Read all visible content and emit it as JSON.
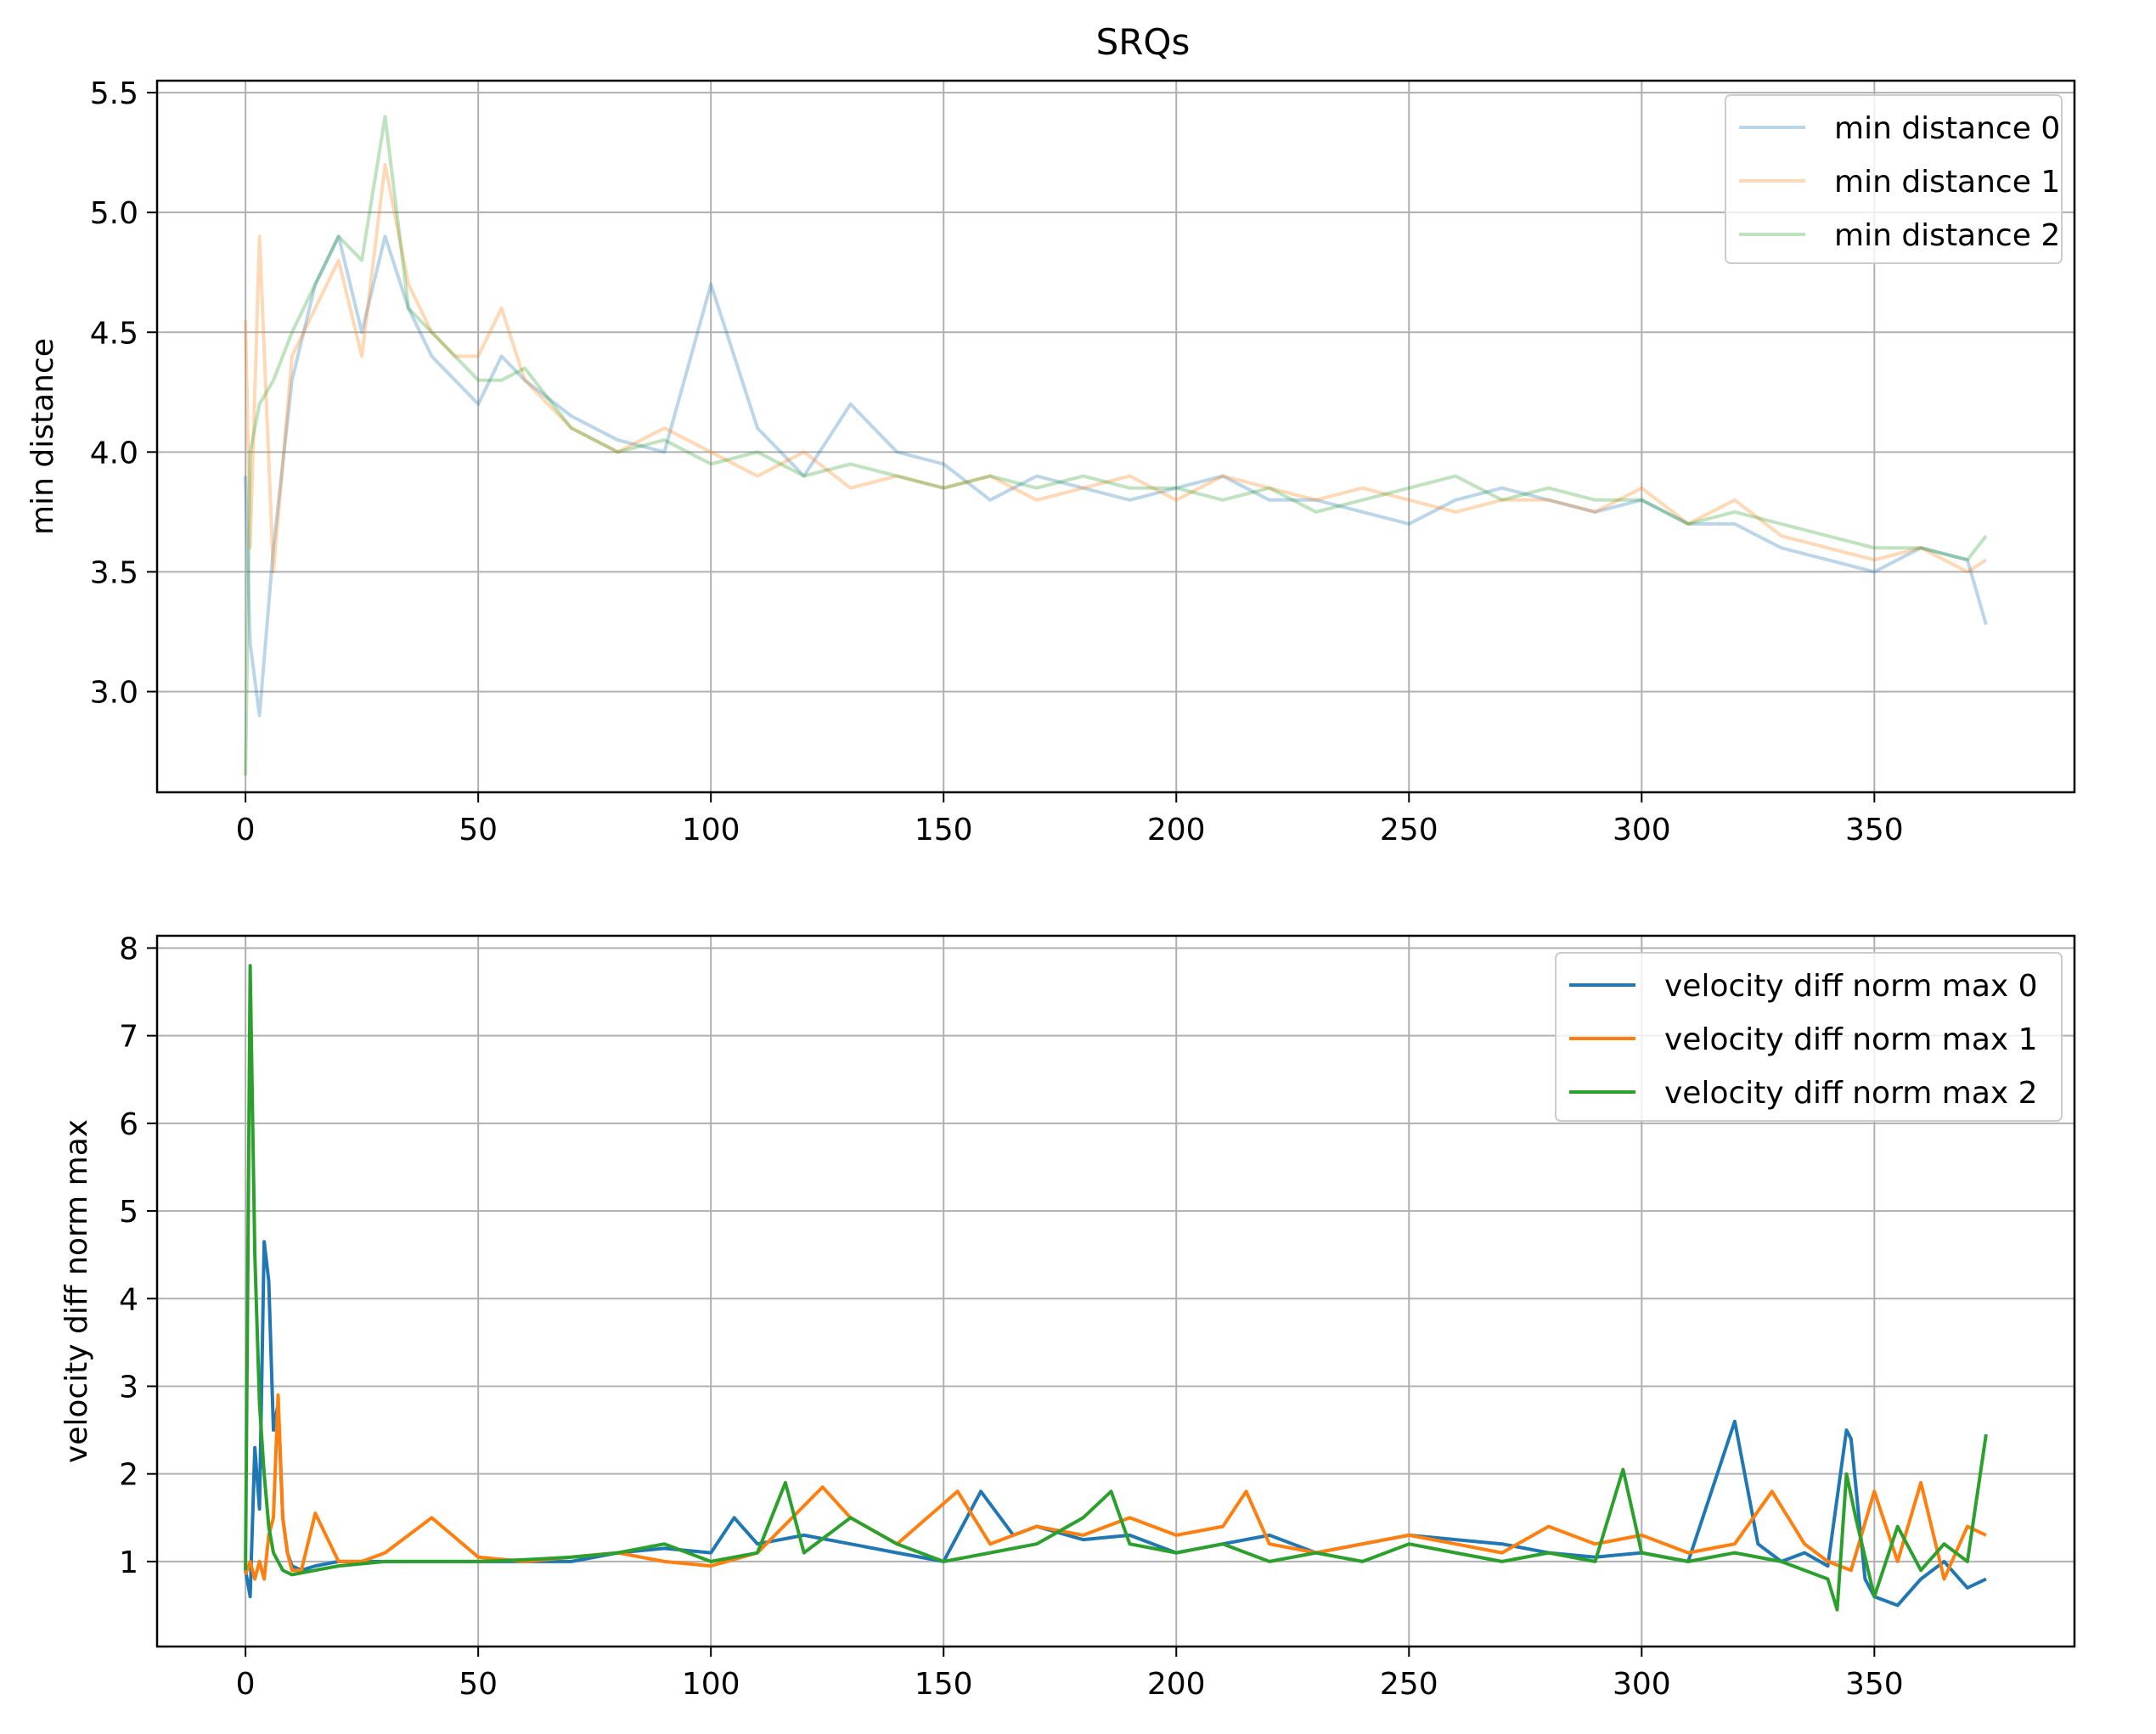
{
  "figure": {
    "title": "SRQs"
  },
  "chart_data": [
    {
      "type": "line",
      "title": "SRQs",
      "xlabel": "",
      "ylabel": "min distance",
      "xlim": [
        -19,
        393
      ],
      "ylim": [
        2.58,
        5.55
      ],
      "xticks": [
        0,
        50,
        100,
        150,
        200,
        250,
        300,
        350
      ],
      "yticks": [
        3.0,
        3.5,
        4.0,
        4.5,
        5.0,
        5.5
      ],
      "ytick_labels": [
        "3.0",
        "3.5",
        "4.0",
        "4.5",
        "5.0",
        "5.5"
      ],
      "grid": true,
      "legend": "top-right",
      "alpha": 0.3,
      "series": [
        {
          "name": "min distance 0",
          "color": "#1f77b4",
          "x": [
            0,
            1,
            3,
            6,
            10,
            15,
            20,
            25,
            30,
            35,
            40,
            45,
            50,
            55,
            60,
            70,
            80,
            90,
            100,
            110,
            120,
            130,
            140,
            150,
            160,
            170,
            180,
            190,
            200,
            210,
            220,
            230,
            240,
            250,
            260,
            270,
            280,
            290,
            300,
            310,
            320,
            330,
            340,
            350,
            360,
            370,
            374
          ],
          "y": [
            3.9,
            3.2,
            2.9,
            3.6,
            4.3,
            4.7,
            4.9,
            4.5,
            4.9,
            4.6,
            4.4,
            4.3,
            4.2,
            4.4,
            4.3,
            4.15,
            4.05,
            4.0,
            4.7,
            4.1,
            3.9,
            4.2,
            4.0,
            3.95,
            3.8,
            3.9,
            3.85,
            3.8,
            3.85,
            3.9,
            3.8,
            3.8,
            3.75,
            3.7,
            3.8,
            3.85,
            3.8,
            3.75,
            3.8,
            3.7,
            3.7,
            3.6,
            3.55,
            3.5,
            3.6,
            3.55,
            3.28
          ]
        },
        {
          "name": "min distance 1",
          "color": "#ff7f0e",
          "x": [
            0,
            1,
            3,
            6,
            10,
            15,
            20,
            25,
            30,
            35,
            40,
            45,
            50,
            55,
            60,
            70,
            80,
            90,
            100,
            110,
            120,
            130,
            140,
            150,
            160,
            170,
            180,
            190,
            200,
            210,
            220,
            230,
            240,
            250,
            260,
            270,
            280,
            290,
            300,
            310,
            320,
            330,
            340,
            350,
            360,
            370,
            374
          ],
          "y": [
            4.55,
            3.6,
            4.9,
            3.5,
            4.4,
            4.6,
            4.8,
            4.4,
            5.2,
            4.7,
            4.5,
            4.4,
            4.4,
            4.6,
            4.3,
            4.1,
            4.0,
            4.1,
            4.0,
            3.9,
            4.0,
            3.85,
            3.9,
            3.85,
            3.9,
            3.8,
            3.85,
            3.9,
            3.8,
            3.9,
            3.85,
            3.8,
            3.85,
            3.8,
            3.75,
            3.8,
            3.8,
            3.75,
            3.85,
            3.7,
            3.8,
            3.65,
            3.6,
            3.55,
            3.6,
            3.5,
            3.55
          ]
        },
        {
          "name": "min distance 2",
          "color": "#2ca02c",
          "x": [
            0,
            1,
            3,
            6,
            10,
            15,
            20,
            25,
            30,
            35,
            40,
            45,
            50,
            55,
            60,
            70,
            80,
            90,
            100,
            110,
            120,
            130,
            140,
            150,
            160,
            170,
            180,
            190,
            200,
            210,
            220,
            230,
            240,
            250,
            260,
            270,
            280,
            290,
            300,
            310,
            320,
            330,
            340,
            350,
            360,
            370,
            374
          ],
          "y": [
            2.65,
            4.0,
            4.2,
            4.3,
            4.5,
            4.7,
            4.9,
            4.8,
            5.4,
            4.6,
            4.5,
            4.4,
            4.3,
            4.3,
            4.35,
            4.1,
            4.0,
            4.05,
            3.95,
            4.0,
            3.9,
            3.95,
            3.9,
            3.85,
            3.9,
            3.85,
            3.9,
            3.85,
            3.85,
            3.8,
            3.85,
            3.75,
            3.8,
            3.85,
            3.9,
            3.8,
            3.85,
            3.8,
            3.8,
            3.7,
            3.75,
            3.7,
            3.65,
            3.6,
            3.6,
            3.55,
            3.65
          ]
        }
      ]
    },
    {
      "type": "line",
      "title": "",
      "xlabel": "",
      "ylabel": "velocity diff norm max",
      "xlim": [
        -19,
        393
      ],
      "ylim": [
        0.03,
        8.14
      ],
      "xticks": [
        0,
        50,
        100,
        150,
        200,
        250,
        300,
        350
      ],
      "yticks": [
        1,
        2,
        3,
        4,
        5,
        6,
        7,
        8
      ],
      "ytick_labels": [
        "1",
        "2",
        "3",
        "4",
        "5",
        "6",
        "7",
        "8"
      ],
      "grid": true,
      "legend": "top-right",
      "alpha": 1.0,
      "series": [
        {
          "name": "velocity diff norm max 0",
          "color": "#1f77b4",
          "x": [
            0,
            1,
            2,
            3,
            4,
            5,
            6,
            7,
            8,
            9,
            10,
            12,
            15,
            20,
            25,
            30,
            40,
            50,
            60,
            70,
            80,
            90,
            100,
            105,
            110,
            120,
            130,
            140,
            150,
            158,
            165,
            170,
            180,
            190,
            200,
            210,
            220,
            230,
            240,
            250,
            260,
            270,
            280,
            290,
            300,
            310,
            320,
            325,
            330,
            335,
            340,
            344,
            345,
            348,
            350,
            355,
            360,
            365,
            370,
            374
          ],
          "y": [
            0.9,
            0.6,
            2.3,
            1.6,
            4.65,
            4.2,
            2.5,
            2.8,
            1.5,
            1.1,
            0.95,
            0.9,
            0.95,
            1.0,
            1.0,
            1.0,
            1.0,
            1.0,
            1.0,
            1.0,
            1.1,
            1.15,
            1.1,
            1.5,
            1.2,
            1.3,
            1.2,
            1.1,
            1.0,
            1.8,
            1.3,
            1.4,
            1.25,
            1.3,
            1.1,
            1.2,
            1.3,
            1.1,
            1.2,
            1.3,
            1.25,
            1.2,
            1.1,
            1.05,
            1.1,
            1.0,
            2.6,
            1.2,
            1.0,
            1.1,
            0.95,
            2.5,
            2.4,
            0.8,
            0.6,
            0.5,
            0.8,
            1.0,
            0.7,
            0.8
          ]
        },
        {
          "name": "velocity diff norm max 1",
          "color": "#ff7f0e",
          "x": [
            0,
            1,
            2,
            3,
            4,
            5,
            6,
            7,
            8,
            9,
            10,
            12,
            15,
            20,
            25,
            30,
            40,
            50,
            60,
            70,
            80,
            90,
            100,
            110,
            124,
            130,
            140,
            153,
            160,
            170,
            180,
            190,
            200,
            210,
            215,
            220,
            230,
            240,
            250,
            260,
            270,
            280,
            290,
            300,
            310,
            320,
            328,
            335,
            340,
            345,
            350,
            355,
            360,
            365,
            370,
            374
          ],
          "y": [
            0.85,
            1.0,
            0.8,
            1.0,
            0.8,
            1.3,
            1.5,
            2.9,
            1.5,
            1.1,
            0.9,
            0.9,
            1.55,
            1.0,
            1.0,
            1.1,
            1.5,
            1.05,
            1.0,
            1.05,
            1.1,
            1.0,
            0.95,
            1.1,
            1.85,
            1.5,
            1.2,
            1.8,
            1.2,
            1.4,
            1.3,
            1.5,
            1.3,
            1.4,
            1.8,
            1.2,
            1.1,
            1.2,
            1.3,
            1.2,
            1.1,
            1.4,
            1.2,
            1.3,
            1.1,
            1.2,
            1.8,
            1.2,
            1.0,
            0.9,
            1.8,
            1.0,
            1.9,
            0.8,
            1.4,
            1.3
          ]
        },
        {
          "name": "velocity diff norm max 2",
          "color": "#2ca02c",
          "x": [
            0,
            1,
            2,
            3,
            4,
            5,
            6,
            8,
            10,
            15,
            20,
            30,
            40,
            50,
            60,
            70,
            80,
            90,
            100,
            110,
            116,
            120,
            130,
            140,
            150,
            160,
            170,
            180,
            186,
            190,
            200,
            210,
            220,
            230,
            240,
            250,
            260,
            270,
            280,
            290,
            296,
            300,
            310,
            320,
            330,
            340,
            342,
            344,
            346,
            350,
            355,
            360,
            365,
            370,
            374
          ],
          "y": [
            0.9,
            7.8,
            4.5,
            2.8,
            2.0,
            1.4,
            1.1,
            0.9,
            0.85,
            0.9,
            0.95,
            1.0,
            1.0,
            1.0,
            1.02,
            1.05,
            1.1,
            1.2,
            1.0,
            1.1,
            1.9,
            1.1,
            1.5,
            1.2,
            1.0,
            1.1,
            1.2,
            1.5,
            1.8,
            1.2,
            1.1,
            1.2,
            1.0,
            1.1,
            1.0,
            1.2,
            1.1,
            1.0,
            1.1,
            1.0,
            2.05,
            1.1,
            1.0,
            1.1,
            1.0,
            0.8,
            0.45,
            2.0,
            1.5,
            0.6,
            1.4,
            0.9,
            1.2,
            1.0,
            2.45
          ]
        }
      ]
    }
  ]
}
